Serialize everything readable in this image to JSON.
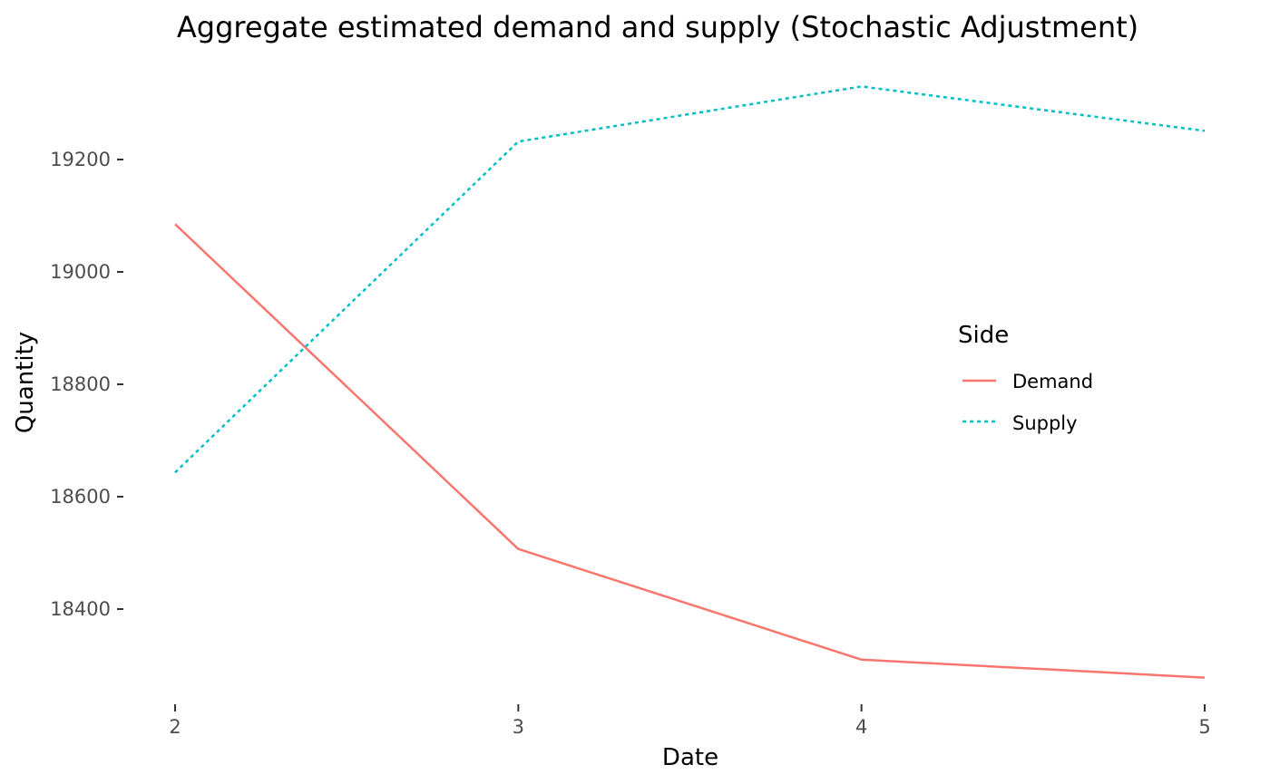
{
  "chart_data": {
    "type": "line",
    "title": "Aggregate estimated demand and supply  (Stochastic Adjustment)",
    "xlabel": "Date",
    "ylabel": "Quantity",
    "x": [
      2,
      3,
      4,
      5
    ],
    "xlim": [
      2,
      5
    ],
    "ylim": [
      18240,
      19340
    ],
    "x_ticks": [
      "2",
      "3",
      "4",
      "5"
    ],
    "y_ticks": [
      18400,
      18600,
      18800,
      19000,
      19200
    ],
    "grid": false,
    "legend": {
      "title": "Side",
      "position": "right"
    },
    "series": [
      {
        "name": "Demand",
        "values": [
          19085,
          18507,
          18310,
          18278
        ],
        "color": "#F8766D",
        "line_style": "solid"
      },
      {
        "name": "Supply",
        "values": [
          18643,
          19232,
          19330,
          19251
        ],
        "color": "#00BFC4",
        "line_style": "dotted"
      }
    ]
  }
}
